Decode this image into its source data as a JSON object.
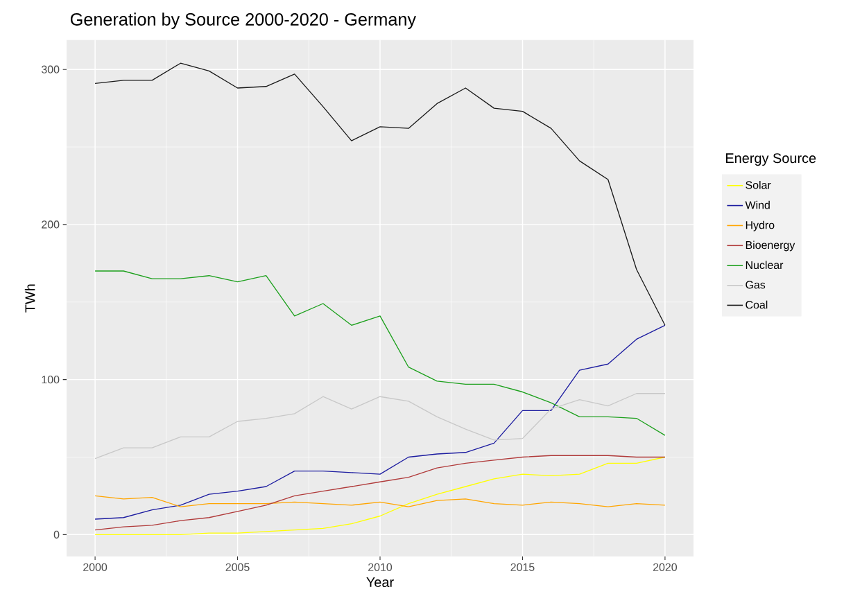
{
  "chart_data": {
    "type": "line",
    "title": "Generation by Source 2000-2020 - Germany",
    "xlabel": "Year",
    "ylabel": "TWh",
    "legend_title": "Energy Source",
    "x": [
      2000,
      2001,
      2002,
      2003,
      2004,
      2005,
      2006,
      2007,
      2008,
      2009,
      2010,
      2011,
      2012,
      2013,
      2014,
      2015,
      2016,
      2017,
      2018,
      2019,
      2020
    ],
    "series": [
      {
        "name": "Solar",
        "color": "#ffff00",
        "values": [
          0,
          0,
          0,
          0,
          1,
          1,
          2,
          3,
          4,
          7,
          12,
          20,
          26,
          31,
          36,
          39,
          38,
          39,
          46,
          46,
          50
        ]
      },
      {
        "name": "Wind",
        "color": "#1c1ca0",
        "values": [
          10,
          11,
          16,
          19,
          26,
          28,
          31,
          41,
          41,
          40,
          39,
          50,
          52,
          53,
          59,
          80,
          80,
          106,
          110,
          126,
          135
        ]
      },
      {
        "name": "Hydro",
        "color": "#ffa500",
        "values": [
          25,
          23,
          24,
          18,
          20,
          20,
          20,
          21,
          20,
          19,
          21,
          18,
          22,
          23,
          20,
          19,
          21,
          20,
          18,
          20,
          19
        ]
      },
      {
        "name": "Bioenergy",
        "color": "#b03a3a",
        "values": [
          3,
          5,
          6,
          9,
          11,
          15,
          19,
          25,
          28,
          31,
          34,
          37,
          43,
          46,
          48,
          50,
          51,
          51,
          51,
          50,
          50
        ]
      },
      {
        "name": "Nuclear",
        "color": "#1ca01c",
        "values": [
          170,
          170,
          165,
          165,
          167,
          163,
          167,
          141,
          149,
          135,
          141,
          108,
          99,
          97,
          97,
          92,
          85,
          76,
          76,
          75,
          64
        ]
      },
      {
        "name": "Gas",
        "color": "#c8c8c8",
        "values": [
          49,
          56,
          56,
          63,
          63,
          73,
          75,
          78,
          89,
          81,
          89,
          86,
          76,
          68,
          61,
          62,
          81,
          87,
          83,
          91,
          91
        ]
      },
      {
        "name": "Coal",
        "color": "#1a1a1a",
        "values": [
          291,
          293,
          293,
          304,
          299,
          288,
          289,
          297,
          276,
          254,
          263,
          262,
          278,
          288,
          275,
          273,
          262,
          241,
          229,
          171,
          135
        ]
      }
    ],
    "xlim": [
      1999,
      2021
    ],
    "ylim": [
      -14,
      319
    ],
    "xticks": [
      2000,
      2005,
      2010,
      2015,
      2020
    ],
    "yticks": [
      0,
      100,
      200,
      300
    ],
    "grid": true,
    "legend": "right",
    "marker": "none",
    "line_style": "solid"
  }
}
